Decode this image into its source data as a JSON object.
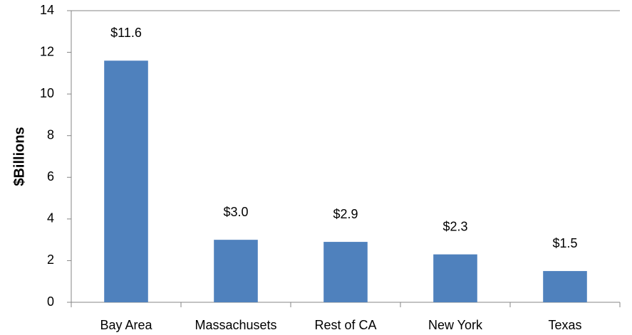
{
  "chart_data": {
    "type": "bar",
    "y_label": "$Billions",
    "categories": [
      "Bay Area",
      "Massachusets",
      "Rest of CA",
      "New York",
      "Texas"
    ],
    "values": [
      11.6,
      3.0,
      2.9,
      2.3,
      1.5
    ],
    "value_labels": [
      "$11.6",
      "$3.0",
      "$2.9",
      "$2.3",
      "$1.5"
    ],
    "color": "#4f81bd",
    "ylim": [
      0,
      14
    ],
    "yticks": [
      0,
      2,
      4,
      6,
      8,
      10,
      12,
      14
    ],
    "grid": false
  }
}
